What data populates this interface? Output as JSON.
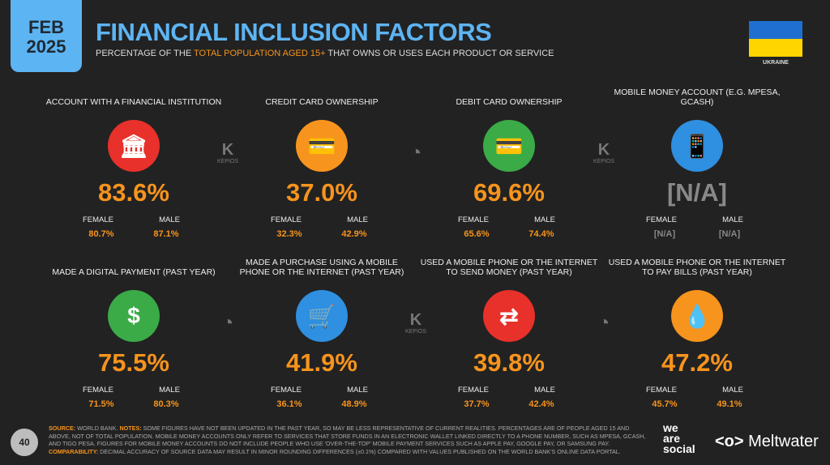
{
  "header": {
    "date_month": "FEB",
    "date_year": "2025",
    "title": "FINANCIAL INCLUSION FACTORS",
    "subtitle_pre": "PERCENTAGE OF THE ",
    "subtitle_hl": "TOTAL POPULATION AGED 15+",
    "subtitle_post": " THAT OWNS OR USES EACH PRODUCT OR SERVICE",
    "country": "UKRAINE"
  },
  "colors": {
    "background": "#222222",
    "accent": "#f7941d",
    "title": "#5db4f3",
    "red": "#e8312a",
    "green": "#3aab47",
    "blue": "#2f8fe0",
    "orange": "#f7941d"
  },
  "labels": {
    "female": "FEMALE",
    "male": "MALE"
  },
  "cards": [
    {
      "label": "ACCOUNT WITH A FINANCIAL INSTITUTION",
      "icon": "bank-icon",
      "color": "#e8312a",
      "value": "83.6%",
      "female": "80.7%",
      "male": "87.1%"
    },
    {
      "label": "CREDIT CARD OWNERSHIP",
      "icon": "credit-card-icon",
      "color": "#f7941d",
      "value": "37.0%",
      "female": "32.3%",
      "male": "42.9%"
    },
    {
      "label": "DEBIT CARD OWNERSHIP",
      "icon": "debit-card-icon",
      "color": "#3aab47",
      "value": "69.6%",
      "female": "65.6%",
      "male": "74.4%"
    },
    {
      "label": "MOBILE MONEY ACCOUNT (E.G. MPESA, GCASH)",
      "icon": "mobile-money-icon",
      "color": "#2f8fe0",
      "value": "[N/A]",
      "female": "[N/A]",
      "male": "[N/A]"
    },
    {
      "label": "MADE A DIGITAL PAYMENT (PAST YEAR)",
      "icon": "digital-payment-icon",
      "color": "#3aab47",
      "value": "75.5%",
      "female": "71.5%",
      "male": "80.3%"
    },
    {
      "label": "MADE A PURCHASE USING A MOBILE PHONE OR THE INTERNET (PAST YEAR)",
      "icon": "shopping-cart-icon",
      "color": "#2f8fe0",
      "value": "41.9%",
      "female": "36.1%",
      "male": "48.9%"
    },
    {
      "label": "USED A MOBILE PHONE OR THE INTERNET TO SEND MONEY (PAST YEAR)",
      "icon": "money-transfer-icon",
      "color": "#e8312a",
      "value": "39.8%",
      "female": "37.7%",
      "male": "42.4%"
    },
    {
      "label": "USED A MOBILE PHONE OR THE INTERNET TO PAY BILLS (PAST YEAR)",
      "icon": "pay-bills-icon",
      "color": "#f7941d",
      "value": "47.2%",
      "female": "45.7%",
      "male": "49.1%"
    }
  ],
  "kepios": "KEPIOS",
  "footer": {
    "source_label": "SOURCE:",
    "source": " WORLD BANK. ",
    "notes_label": "NOTES:",
    "notes": " SOME FIGURES HAVE NOT BEEN UPDATED IN THE PAST YEAR, SO MAY BE LESS REPRESENTATIVE OF CURRENT REALITIES. PERCENTAGES ARE OF PEOPLE AGED 15 AND ABOVE, NOT OF TOTAL POPULATION. MOBILE MONEY ACCOUNTS ONLY REFER TO SERVICES THAT STORE FUNDS IN AN ELECTRONIC WALLET LINKED DIRECTLY TO A PHONE NUMBER, SUCH AS MPESA, GCASH, AND TIGO PESA. FIGURES FOR MOBILE MONEY ACCOUNTS DO NOT INCLUDE PEOPLE WHO USE 'OVER-THE-TOP' MOBILE PAYMENT SERVICES SUCH AS APPLE PAY, GOOGLE PAY, OR SAMSUNG PAY. ",
    "comp_label": "COMPARABILITY:",
    "comp": " DECIMAL ACCURACY OF SOURCE DATA MAY RESULT IN MINOR ROUNDING DIFFERENCES (±0.1%) COMPARED WITH VALUES PUBLISHED ON THE WORLD BANK'S ONLINE DATA PORTAL.",
    "page": "40",
    "brand1": "we are social",
    "brand2": "Meltwater"
  }
}
